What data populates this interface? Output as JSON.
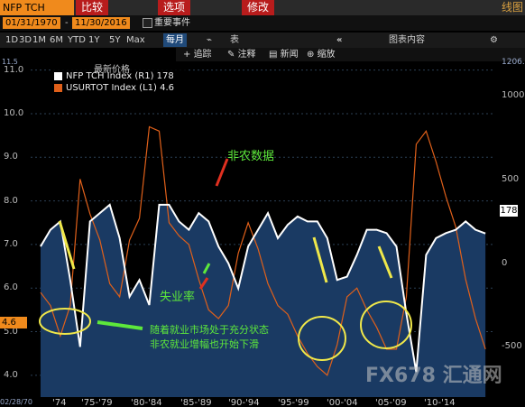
{
  "toolbar": {
    "ticker": "NFP TCH Index",
    "menu": [
      "比较",
      "选项",
      "修改"
    ],
    "corner": "线图"
  },
  "dates": {
    "start": "01/31/1970",
    "end": "11/30/2016",
    "event_label": "重要事件"
  },
  "ranges": [
    "1D",
    "3D",
    "1M",
    "6M",
    "YTD",
    "1Y",
    "5Y",
    "Max"
  ],
  "period": "每月",
  "extra_label": "表",
  "content_label": "图表内容",
  "tools": [
    "追踪",
    "注释",
    "新闻",
    "缩放"
  ],
  "legend": {
    "header": "最新价格",
    "items": [
      {
        "name": "NFP TCH Index (R1)",
        "value": "178",
        "color": "#ffffff"
      },
      {
        "name": "USURTOT Index (L1)",
        "value": "4.6",
        "color": "#e0601a"
      }
    ]
  },
  "axes": {
    "left": [
      "11.0",
      "10.0",
      "9.0",
      "8.0",
      "7.0",
      "6.0",
      "5.0",
      "4.0"
    ],
    "right": [
      "1000",
      "500",
      "0",
      "-500"
    ],
    "right_top": "1206.83",
    "left_top": "11.5",
    "x": [
      "'74",
      "'75-'79",
      "'80-'84",
      "'85-'89",
      "'90-'94",
      "'95-'99",
      "'00-'04",
      "'05-'09",
      "'10-'14"
    ],
    "date_stamp": "02/28/70"
  },
  "tags": {
    "right": "178",
    "left": "4.6"
  },
  "annotations": {
    "nfp": "非农数据",
    "unemp": "失业率",
    "note_line1": "随着就业市场处于充分状态",
    "note_line2": "非农就业增幅也开始下滑"
  },
  "watermark": "FX678 汇通网",
  "colors": {
    "accent": "#f08a1c",
    "nfp": "#ffffff",
    "unemp": "#e0601a",
    "fill": "#1a3a63",
    "ann": "#5de83b"
  },
  "chart_data": {
    "type": "line",
    "series": [
      {
        "name": "NFP TCH Index",
        "axis": "right",
        "x": [
          1971,
          1972,
          1973,
          1974,
          1975,
          1976,
          1977,
          1978,
          1979,
          1980,
          1981,
          1982,
          1983,
          1984,
          1985,
          1986,
          1987,
          1988,
          1989,
          1990,
          1991,
          1992,
          1993,
          1994,
          1995,
          1996,
          1997,
          1998,
          1999,
          2000,
          2001,
          2002,
          2003,
          2004,
          2005,
          2006,
          2007,
          2008,
          2009,
          2010,
          2011,
          2012,
          2013,
          2014,
          2015,
          2016
        ],
        "values": [
          100,
          200,
          250,
          -100,
          -500,
          250,
          300,
          350,
          150,
          -200,
          -100,
          -250,
          350,
          350,
          250,
          200,
          300,
          250,
          100,
          0,
          -150,
          100,
          200,
          300,
          150,
          230,
          280,
          250,
          250,
          150,
          -100,
          -80,
          50,
          200,
          200,
          180,
          100,
          -300,
          -650,
          50,
          150,
          180,
          200,
          250,
          200,
          178
        ]
      },
      {
        "name": "USURTOT Index",
        "axis": "left",
        "x": [
          1971,
          1972,
          1973,
          1974,
          1975,
          1976,
          1977,
          1978,
          1979,
          1980,
          1981,
          1982,
          1983,
          1984,
          1985,
          1986,
          1987,
          1988,
          1989,
          1990,
          1991,
          1992,
          1993,
          1994,
          1995,
          1996,
          1997,
          1998,
          1999,
          2000,
          2001,
          2002,
          2003,
          2004,
          2005,
          2006,
          2007,
          2008,
          2009,
          2010,
          2011,
          2012,
          2013,
          2014,
          2015,
          2016
        ],
        "values": [
          5.9,
          5.6,
          4.9,
          5.6,
          8.5,
          7.7,
          7.1,
          6.1,
          5.8,
          7.1,
          7.6,
          9.7,
          9.6,
          7.5,
          7.2,
          7.0,
          6.2,
          5.5,
          5.3,
          5.6,
          6.8,
          7.5,
          6.9,
          6.1,
          5.6,
          5.4,
          4.9,
          4.5,
          4.2,
          4.0,
          4.7,
          5.8,
          6.0,
          5.5,
          5.1,
          4.6,
          4.6,
          5.8,
          9.3,
          9.6,
          8.9,
          8.1,
          7.4,
          6.2,
          5.3,
          4.6
        ]
      }
    ],
    "ylim_left": [
      3.5,
      11.2
    ],
    "ylim_right": [
      -800,
      1206.83
    ]
  }
}
